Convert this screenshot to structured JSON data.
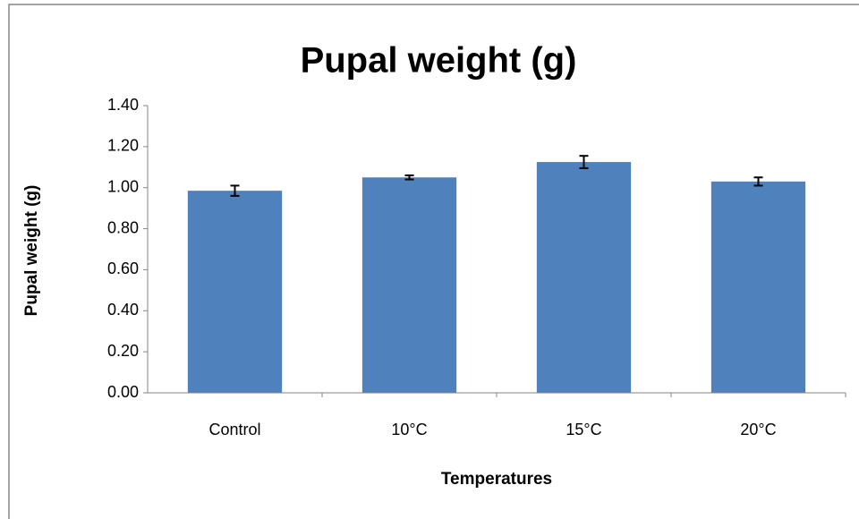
{
  "chart_data": {
    "type": "bar",
    "title": "Pupal weight (g)",
    "x_label": "Temperatures",
    "y_label": "Pupal weight (g)",
    "categories": [
      "Control",
      "10°C",
      "15°C",
      "20°C"
    ],
    "values": [
      0.985,
      1.05,
      1.125,
      1.03
    ],
    "errors": [
      0.025,
      0.01,
      0.03,
      0.02
    ],
    "color": "#4f81bd",
    "ylim": [
      0,
      1.4
    ],
    "yticks": [
      {
        "value": 0,
        "label": "0.00"
      },
      {
        "value": 0.2,
        "label": "0.20"
      },
      {
        "value": 0.4,
        "label": "0.40"
      },
      {
        "value": 0.6,
        "label": "0.60"
      },
      {
        "value": 0.8,
        "label": "0.80"
      },
      {
        "value": 1.0,
        "label": "1.00"
      },
      {
        "value": 1.2,
        "label": "1.20"
      },
      {
        "value": 1.4,
        "label": "1.40"
      }
    ],
    "grid": false
  }
}
